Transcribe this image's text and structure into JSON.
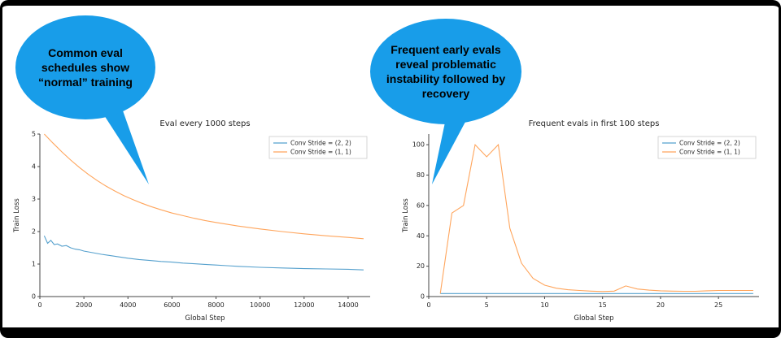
{
  "callouts": {
    "bubble_color": "#189de9",
    "left": {
      "text": "Common eval schedules show “normal” training"
    },
    "right": {
      "text": "Frequent early evals reveal problematic instability followed by recovery"
    }
  },
  "chart_data": [
    {
      "type": "line",
      "title": "Eval every 1000 steps",
      "xlabel": "Global Step",
      "ylabel": "Train Loss",
      "xlim": [
        0,
        15000
      ],
      "ylim": [
        0,
        5
      ],
      "xticks": [
        0,
        2000,
        4000,
        6000,
        8000,
        10000,
        12000,
        14000
      ],
      "yticks": [
        0,
        1,
        2,
        3,
        4,
        5
      ],
      "legend_position": "upper right",
      "grid": false,
      "series": [
        {
          "name": "Conv Stride =  (2, 2)",
          "color": "#55a0cd",
          "x": [
            200,
            350,
            500,
            650,
            800,
            1000,
            1200,
            1400,
            1600,
            1800,
            2000,
            2400,
            2800,
            3200,
            3600,
            4000,
            4500,
            5000,
            5500,
            6000,
            6500,
            7000,
            7500,
            8000,
            8500,
            9000,
            10000,
            11000,
            12000,
            13000,
            14000,
            14700
          ],
          "y": [
            1.87,
            1.64,
            1.73,
            1.6,
            1.62,
            1.55,
            1.57,
            1.5,
            1.46,
            1.44,
            1.4,
            1.35,
            1.3,
            1.26,
            1.22,
            1.18,
            1.14,
            1.11,
            1.08,
            1.06,
            1.03,
            1.01,
            0.99,
            0.97,
            0.95,
            0.93,
            0.9,
            0.88,
            0.86,
            0.85,
            0.84,
            0.82
          ]
        },
        {
          "name": "Conv Stride =  (1, 1)",
          "color": "#ffa55c",
          "x": [
            200,
            600,
            1000,
            1400,
            1800,
            2200,
            2600,
            3000,
            3400,
            3800,
            4200,
            4600,
            5000,
            5500,
            6000,
            6500,
            7000,
            7500,
            8000,
            9000,
            10000,
            11000,
            12000,
            13000,
            14000,
            14700
          ],
          "y": [
            5.0,
            4.72,
            4.45,
            4.2,
            3.97,
            3.76,
            3.57,
            3.4,
            3.25,
            3.11,
            2.99,
            2.88,
            2.78,
            2.67,
            2.57,
            2.49,
            2.41,
            2.34,
            2.28,
            2.17,
            2.08,
            2.0,
            1.93,
            1.87,
            1.82,
            1.78
          ]
        }
      ]
    },
    {
      "type": "line",
      "title": "Frequent evals in first 100 steps",
      "xlabel": "Global Step",
      "ylabel": "Train Loss",
      "xlim": [
        0,
        28.5
      ],
      "ylim": [
        0,
        107
      ],
      "xticks": [
        0,
        5,
        10,
        15,
        20,
        25
      ],
      "yticks": [
        0,
        20,
        40,
        60,
        80,
        100
      ],
      "legend_position": "upper right",
      "grid": false,
      "series": [
        {
          "name": "Conv Stride =  (2, 2)",
          "color": "#55a0cd",
          "x": [
            1,
            2,
            3,
            4,
            5,
            6,
            7,
            8,
            9,
            10,
            11,
            12,
            13,
            14,
            15,
            16,
            17,
            18,
            19,
            20,
            21,
            22,
            23,
            24,
            25,
            26,
            27,
            28
          ],
          "y": [
            2,
            2,
            2,
            2,
            2,
            2,
            2,
            2,
            2,
            2,
            2,
            2,
            2,
            2,
            2,
            2,
            2,
            2,
            2,
            2,
            2,
            2,
            2,
            2,
            2,
            2,
            2,
            2
          ]
        },
        {
          "name": "Conv Stride =  (1, 1)",
          "color": "#ffa55c",
          "x": [
            1,
            2,
            3,
            4,
            5,
            6,
            7,
            8,
            9,
            10,
            11,
            12,
            13,
            14,
            15,
            16,
            17,
            18,
            19,
            20,
            21,
            22,
            23,
            24,
            25,
            26,
            27,
            28
          ],
          "y": [
            2,
            55,
            60,
            100,
            92,
            100,
            45,
            22,
            12,
            7.5,
            5.5,
            4.5,
            4,
            3.6,
            3.3,
            3.6,
            7,
            5,
            4.2,
            3.8,
            3.6,
            3.5,
            3.5,
            3.8,
            4,
            4,
            4,
            4
          ]
        }
      ]
    }
  ]
}
